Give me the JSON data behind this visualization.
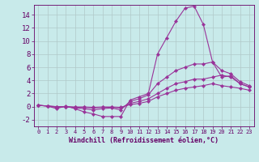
{
  "background_color": "#c8eaea",
  "grid_color": "#b0c8c8",
  "line_color": "#993399",
  "marker_color": "#993399",
  "xlabel": "Windchill (Refroidissement éolien,°C)",
  "xlim": [
    -0.5,
    23.5
  ],
  "ylim": [
    -3.0,
    15.5
  ],
  "ytick_values": [
    -2,
    0,
    2,
    4,
    6,
    8,
    10,
    12,
    14
  ],
  "lines": [
    {
      "x": [
        0,
        1,
        2,
        3,
        4,
        5,
        6,
        7,
        8,
        9,
        10,
        11,
        12,
        13,
        14,
        15,
        16,
        17,
        18,
        19,
        20,
        21,
        22,
        23
      ],
      "y": [
        0.2,
        0.1,
        -0.3,
        0.1,
        -0.3,
        -0.8,
        -1.1,
        -1.5,
        -1.5,
        -1.5,
        1.0,
        1.5,
        2.0,
        8.0,
        10.5,
        13.0,
        15.0,
        15.3,
        12.5,
        6.8,
        4.5,
        4.7,
        3.5,
        3.0
      ]
    },
    {
      "x": [
        0,
        1,
        2,
        3,
        4,
        5,
        6,
        7,
        8,
        9,
        10,
        11,
        12,
        13,
        14,
        15,
        16,
        17,
        18,
        19,
        20,
        21,
        22,
        23
      ],
      "y": [
        0.2,
        0.1,
        -0.1,
        0.0,
        -0.2,
        -0.3,
        -0.5,
        -0.3,
        -0.2,
        -0.5,
        0.8,
        1.2,
        1.8,
        3.5,
        4.5,
        5.5,
        6.0,
        6.5,
        6.5,
        6.8,
        5.5,
        5.0,
        3.8,
        3.2
      ]
    },
    {
      "x": [
        0,
        1,
        2,
        3,
        4,
        5,
        6,
        7,
        8,
        9,
        10,
        11,
        12,
        13,
        14,
        15,
        16,
        17,
        18,
        19,
        20,
        21,
        22,
        23
      ],
      "y": [
        0.2,
        0.1,
        0.0,
        0.0,
        -0.1,
        -0.1,
        -0.2,
        -0.1,
        -0.1,
        -0.2,
        0.5,
        0.8,
        1.2,
        2.0,
        2.8,
        3.5,
        3.8,
        4.2,
        4.2,
        4.5,
        4.8,
        4.5,
        3.5,
        3.0
      ]
    },
    {
      "x": [
        0,
        1,
        2,
        3,
        4,
        5,
        6,
        7,
        8,
        9,
        10,
        11,
        12,
        13,
        14,
        15,
        16,
        17,
        18,
        19,
        20,
        21,
        22,
        23
      ],
      "y": [
        0.2,
        0.1,
        0.0,
        0.0,
        -0.05,
        -0.05,
        -0.1,
        -0.05,
        -0.05,
        -0.1,
        0.3,
        0.5,
        0.8,
        1.5,
        2.0,
        2.5,
        2.8,
        3.0,
        3.2,
        3.5,
        3.2,
        3.0,
        2.8,
        2.5
      ]
    }
  ],
  "text_color": "#660066",
  "tick_color": "#660066",
  "spine_color": "#660066",
  "xlabel_fontsize": 6,
  "ytick_fontsize": 6.5,
  "xtick_fontsize": 5.0,
  "linewidth": 0.8,
  "markersize": 2.2
}
